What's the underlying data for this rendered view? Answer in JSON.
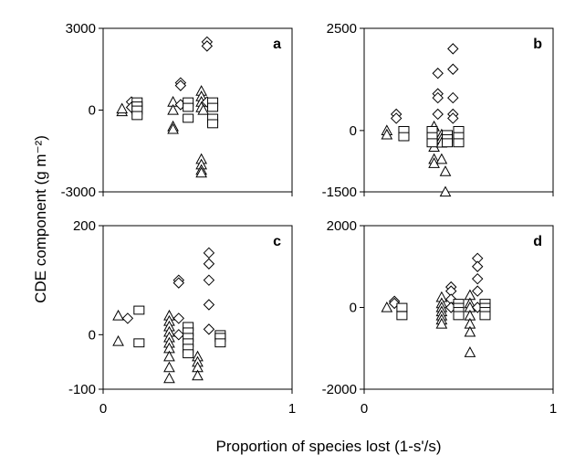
{
  "chart_data": {
    "type": "scatter",
    "xlabel": "Proportion of species lost (1-s'/s)",
    "ylabel": "CDE component (g m⁻²)",
    "xlim": [
      0,
      1
    ],
    "x_ticks": [
      "0",
      "1"
    ],
    "marker_legend": {
      "triangle": "unlabeled series (triangle markers)",
      "diamond": "unlabeled series (diamond markers)",
      "square": "unlabeled series (square markers)"
    },
    "panels": [
      {
        "letter": "a",
        "ylim": [
          -3000,
          3000
        ],
        "y_ticks": [
          "3000",
          "0",
          "-3000"
        ],
        "series": [
          {
            "marker": "triangle",
            "points": [
              [
                0.1,
                -50
              ],
              [
                0.1,
                50
              ],
              [
                0.37,
                300
              ],
              [
                0.37,
                0
              ],
              [
                0.37,
                -600
              ],
              [
                0.37,
                -700
              ],
              [
                0.52,
                700
              ],
              [
                0.52,
                500
              ],
              [
                0.52,
                300
              ],
              [
                0.52,
                100
              ],
              [
                0.52,
                -1800
              ],
              [
                0.52,
                -2000
              ],
              [
                0.52,
                -2200
              ],
              [
                0.52,
                -2300
              ],
              [
                0.53,
                0
              ]
            ]
          },
          {
            "marker": "diamond",
            "points": [
              [
                0.15,
                300
              ],
              [
                0.15,
                100
              ],
              [
                0.41,
                1000
              ],
              [
                0.41,
                900
              ],
              [
                0.41,
                200
              ],
              [
                0.55,
                2500
              ],
              [
                0.55,
                2350
              ],
              [
                0.55,
                300
              ]
            ]
          },
          {
            "marker": "square",
            "points": [
              [
                0.18,
                300
              ],
              [
                0.18,
                150
              ],
              [
                0.18,
                0
              ],
              [
                0.18,
                -200
              ],
              [
                0.45,
                300
              ],
              [
                0.45,
                100
              ],
              [
                0.45,
                -300
              ],
              [
                0.58,
                300
              ],
              [
                0.58,
                100
              ],
              [
                0.58,
                -300
              ],
              [
                0.58,
                -500
              ]
            ]
          }
        ]
      },
      {
        "letter": "b",
        "ylim": [
          -1500,
          2500
        ],
        "y_ticks": [
          "2500",
          "0",
          "-1500"
        ],
        "series": [
          {
            "marker": "triangle",
            "points": [
              [
                0.12,
                0
              ],
              [
                0.12,
                -100
              ],
              [
                0.37,
                100
              ],
              [
                0.37,
                -200
              ],
              [
                0.37,
                -400
              ],
              [
                0.37,
                -700
              ],
              [
                0.37,
                -800
              ],
              [
                0.41,
                -100
              ],
              [
                0.41,
                -200
              ],
              [
                0.41,
                -300
              ],
              [
                0.41,
                -700
              ],
              [
                0.43,
                -1000
              ],
              [
                0.43,
                -1500
              ]
            ]
          },
          {
            "marker": "diamond",
            "points": [
              [
                0.17,
                400
              ],
              [
                0.17,
                300
              ],
              [
                0.39,
                1400
              ],
              [
                0.39,
                900
              ],
              [
                0.39,
                800
              ],
              [
                0.39,
                400
              ],
              [
                0.47,
                2000
              ],
              [
                0.47,
                1500
              ],
              [
                0.47,
                800
              ],
              [
                0.47,
                400
              ],
              [
                0.47,
                300
              ]
            ]
          },
          {
            "marker": "square",
            "points": [
              [
                0.21,
                0
              ],
              [
                0.21,
                -150
              ],
              [
                0.36,
                0
              ],
              [
                0.36,
                -150
              ],
              [
                0.36,
                -300
              ],
              [
                0.44,
                -100
              ],
              [
                0.44,
                -200
              ],
              [
                0.44,
                -300
              ],
              [
                0.5,
                0
              ],
              [
                0.5,
                -150
              ],
              [
                0.5,
                -300
              ]
            ]
          }
        ]
      },
      {
        "letter": "c",
        "ylim": [
          -100,
          200
        ],
        "y_ticks": [
          "200",
          "0",
          "-100"
        ],
        "series": [
          {
            "marker": "triangle",
            "points": [
              [
                0.08,
                35
              ],
              [
                0.08,
                -12
              ],
              [
                0.35,
                35
              ],
              [
                0.35,
                25
              ],
              [
                0.35,
                15
              ],
              [
                0.35,
                5
              ],
              [
                0.35,
                -5
              ],
              [
                0.35,
                -15
              ],
              [
                0.35,
                -25
              ],
              [
                0.35,
                -40
              ],
              [
                0.35,
                -60
              ],
              [
                0.35,
                -80
              ],
              [
                0.5,
                -40
              ],
              [
                0.5,
                -50
              ],
              [
                0.5,
                -60
              ],
              [
                0.5,
                -75
              ]
            ]
          },
          {
            "marker": "diamond",
            "points": [
              [
                0.13,
                30
              ],
              [
                0.4,
                100
              ],
              [
                0.4,
                95
              ],
              [
                0.4,
                30
              ],
              [
                0.4,
                0
              ],
              [
                0.56,
                150
              ],
              [
                0.56,
                130
              ],
              [
                0.56,
                100
              ],
              [
                0.56,
                55
              ],
              [
                0.56,
                10
              ]
            ]
          },
          {
            "marker": "square",
            "points": [
              [
                0.19,
                45
              ],
              [
                0.19,
                -15
              ],
              [
                0.45,
                15
              ],
              [
                0.45,
                5
              ],
              [
                0.45,
                -5
              ],
              [
                0.45,
                -15
              ],
              [
                0.45,
                -25
              ],
              [
                0.45,
                -35
              ],
              [
                0.62,
                0
              ],
              [
                0.62,
                -5
              ],
              [
                0.62,
                -15
              ]
            ]
          }
        ]
      },
      {
        "letter": "d",
        "ylim": [
          -2000,
          2000
        ],
        "y_ticks": [
          "2000",
          "0",
          "-2000"
        ],
        "series": [
          {
            "marker": "triangle",
            "points": [
              [
                0.12,
                0
              ],
              [
                0.41,
                250
              ],
              [
                0.41,
                100
              ],
              [
                0.41,
                0
              ],
              [
                0.41,
                -100
              ],
              [
                0.41,
                -200
              ],
              [
                0.41,
                -300
              ],
              [
                0.41,
                -400
              ],
              [
                0.56,
                300
              ],
              [
                0.56,
                100
              ],
              [
                0.56,
                0
              ],
              [
                0.56,
                -200
              ],
              [
                0.56,
                -400
              ],
              [
                0.56,
                -600
              ],
              [
                0.56,
                -1100
              ]
            ]
          },
          {
            "marker": "diamond",
            "points": [
              [
                0.16,
                150
              ],
              [
                0.16,
                100
              ],
              [
                0.46,
                500
              ],
              [
                0.46,
                400
              ],
              [
                0.46,
                200
              ],
              [
                0.46,
                0
              ],
              [
                0.6,
                1200
              ],
              [
                0.6,
                1000
              ],
              [
                0.6,
                700
              ],
              [
                0.6,
                400
              ],
              [
                0.6,
                0
              ]
            ]
          },
          {
            "marker": "square",
            "points": [
              [
                0.2,
                0
              ],
              [
                0.2,
                -200
              ],
              [
                0.5,
                100
              ],
              [
                0.5,
                0
              ],
              [
                0.5,
                -100
              ],
              [
                0.5,
                -200
              ],
              [
                0.64,
                100
              ],
              [
                0.64,
                0
              ],
              [
                0.64,
                -100
              ],
              [
                0.64,
                -200
              ]
            ]
          }
        ]
      }
    ]
  }
}
